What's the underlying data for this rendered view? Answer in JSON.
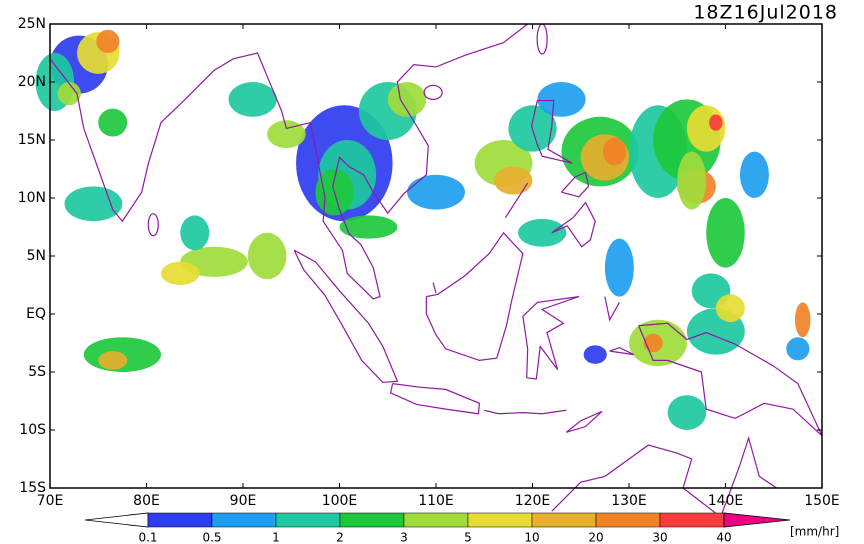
{
  "map": {
    "title": "18Z16Jul2018",
    "lat_labels": [
      "25N",
      "20N",
      "15N",
      "10N",
      "5N",
      "EQ",
      "5S",
      "10S",
      "15S"
    ],
    "lon_labels": [
      "70E",
      "80E",
      "90E",
      "100E",
      "110E",
      "120E",
      "130E",
      "140E",
      "150E"
    ],
    "colorbar": {
      "levels": [
        0.1,
        0.5,
        1,
        2,
        3,
        5,
        10,
        20,
        30,
        40
      ],
      "colors": [
        "#ffffff",
        "#2c3cf0",
        "#1e9ef0",
        "#1ec8a0",
        "#1ec83c",
        "#a0dc3c",
        "#e6dc32",
        "#e6af2d",
        "#f08228",
        "#fa3c3c",
        "#f00082"
      ],
      "unit": "[mm/hr]"
    }
  }
}
